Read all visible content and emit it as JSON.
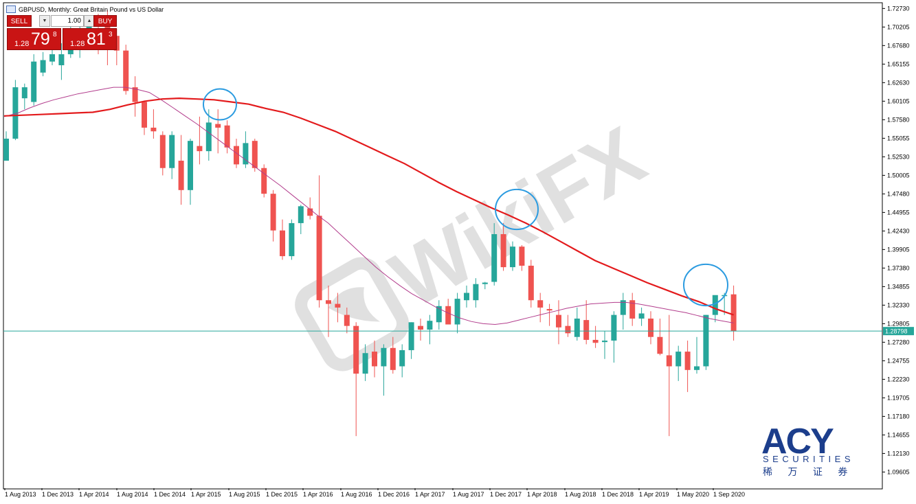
{
  "header": {
    "title": "GBPUSD, Monthly:  Great Britain Pound vs US Dollar",
    "icon": "chart-window-icon"
  },
  "trade_panel": {
    "sell_label": "SELL",
    "buy_label": "BUY",
    "lot_value": "1.00",
    "bid": {
      "prefix": "1.28",
      "big": "79",
      "sup": "8"
    },
    "ask": {
      "prefix": "1.28",
      "big": "81",
      "sup": "3"
    }
  },
  "current_price_label": "1.28798",
  "colors": {
    "bull": "#26a69a",
    "bear": "#ef5350",
    "ma_slow": "#e31a1c",
    "ma_fast": "#b23c8c",
    "price_line": "#26a69a",
    "circle": "#2b9be0",
    "panel_red": "#c91414"
  },
  "watermark": {
    "text": "WikiFX"
  },
  "logo": {
    "brand": "ACY",
    "sub": "SECURITIES",
    "cn": "稀 万 证 券"
  },
  "chart_data": {
    "type": "candlestick",
    "y_ticks": [
      "1.72730",
      "1.70205",
      "1.67680",
      "1.65155",
      "1.62630",
      "1.60105",
      "1.57580",
      "1.55055",
      "1.52530",
      "1.50005",
      "1.47480",
      "1.44955",
      "1.42430",
      "1.39905",
      "1.37380",
      "1.34855",
      "1.32330",
      "1.29805",
      "1.27280",
      "1.24755",
      "1.22230",
      "1.19705",
      "1.17180",
      "1.14655",
      "1.12130",
      "1.09605"
    ],
    "ylim": [
      1.074,
      1.7323
    ],
    "x_ticks": [
      "1 Aug 2013",
      "1 Dec 2013",
      "1 Apr 2014",
      "1 Aug 2014",
      "1 Dec 2014",
      "1 Apr 2015",
      "1 Aug 2015",
      "1 Dec 2015",
      "1 Apr 2016",
      "1 Aug 2016",
      "1 Dec 2016",
      "1 Apr 2017",
      "1 Aug 2017",
      "1 Dec 2017",
      "1 Apr 2018",
      "1 Aug 2018",
      "1 Dec 2018",
      "1 Apr 2019",
      "1 May 2020",
      "1 Sep 2020"
    ],
    "candles": [
      {
        "o": 1.52,
        "h": 1.56,
        "l": 1.52,
        "c": 1.55
      },
      {
        "o": 1.55,
        "h": 1.63,
        "l": 1.548,
        "c": 1.62
      },
      {
        "o": 1.605,
        "h": 1.625,
        "l": 1.59,
        "c": 1.62
      },
      {
        "o": 1.6,
        "h": 1.665,
        "l": 1.595,
        "c": 1.655
      },
      {
        "o": 1.64,
        "h": 1.668,
        "l": 1.635,
        "c": 1.657
      },
      {
        "o": 1.655,
        "h": 1.69,
        "l": 1.65,
        "c": 1.665
      },
      {
        "o": 1.65,
        "h": 1.68,
        "l": 1.63,
        "c": 1.665
      },
      {
        "o": 1.665,
        "h": 1.705,
        "l": 1.66,
        "c": 1.677
      },
      {
        "o": 1.673,
        "h": 1.71,
        "l": 1.66,
        "c": 1.69
      },
      {
        "o": 1.69,
        "h": 1.715,
        "l": 1.675,
        "c": 1.705
      },
      {
        "o": 1.71,
        "h": 1.72,
        "l": 1.665,
        "c": 1.705
      },
      {
        "o": 1.715,
        "h": 1.725,
        "l": 1.65,
        "c": 1.7
      },
      {
        "o": 1.69,
        "h": 1.7,
        "l": 1.65,
        "c": 1.67
      },
      {
        "o": 1.67,
        "h": 1.678,
        "l": 1.61,
        "c": 1.615
      },
      {
        "o": 1.62,
        "h": 1.635,
        "l": 1.58,
        "c": 1.6
      },
      {
        "o": 1.6,
        "h": 1.602,
        "l": 1.555,
        "c": 1.565
      },
      {
        "o": 1.565,
        "h": 1.59,
        "l": 1.55,
        "c": 1.56
      },
      {
        "o": 1.555,
        "h": 1.56,
        "l": 1.5,
        "c": 1.51
      },
      {
        "o": 1.51,
        "h": 1.56,
        "l": 1.495,
        "c": 1.555
      },
      {
        "o": 1.52,
        "h": 1.555,
        "l": 1.46,
        "c": 1.48
      },
      {
        "o": 1.48,
        "h": 1.55,
        "l": 1.46,
        "c": 1.547
      },
      {
        "o": 1.54,
        "h": 1.58,
        "l": 1.515,
        "c": 1.533
      },
      {
        "o": 1.533,
        "h": 1.59,
        "l": 1.52,
        "c": 1.572
      },
      {
        "o": 1.57,
        "h": 1.59,
        "l": 1.53,
        "c": 1.565
      },
      {
        "o": 1.568,
        "h": 1.575,
        "l": 1.53,
        "c": 1.538
      },
      {
        "o": 1.54,
        "h": 1.55,
        "l": 1.51,
        "c": 1.515
      },
      {
        "o": 1.515,
        "h": 1.56,
        "l": 1.51,
        "c": 1.544
      },
      {
        "o": 1.547,
        "h": 1.55,
        "l": 1.505,
        "c": 1.51
      },
      {
        "o": 1.51,
        "h": 1.515,
        "l": 1.47,
        "c": 1.475
      },
      {
        "o": 1.475,
        "h": 1.48,
        "l": 1.41,
        "c": 1.425
      },
      {
        "o": 1.425,
        "h": 1.44,
        "l": 1.385,
        "c": 1.39
      },
      {
        "o": 1.39,
        "h": 1.44,
        "l": 1.385,
        "c": 1.435
      },
      {
        "o": 1.435,
        "h": 1.46,
        "l": 1.42,
        "c": 1.458
      },
      {
        "o": 1.455,
        "h": 1.47,
        "l": 1.44,
        "c": 1.445
      },
      {
        "o": 1.445,
        "h": 1.5,
        "l": 1.32,
        "c": 1.33
      },
      {
        "o": 1.33,
        "h": 1.35,
        "l": 1.28,
        "c": 1.325
      },
      {
        "o": 1.325,
        "h": 1.34,
        "l": 1.3,
        "c": 1.32
      },
      {
        "o": 1.31,
        "h": 1.32,
        "l": 1.285,
        "c": 1.295
      },
      {
        "o": 1.295,
        "h": 1.3,
        "l": 1.145,
        "c": 1.23
      },
      {
        "o": 1.23,
        "h": 1.27,
        "l": 1.22,
        "c": 1.258
      },
      {
        "o": 1.26,
        "h": 1.275,
        "l": 1.225,
        "c": 1.24
      },
      {
        "o": 1.24,
        "h": 1.27,
        "l": 1.2,
        "c": 1.265
      },
      {
        "o": 1.265,
        "h": 1.28,
        "l": 1.23,
        "c": 1.235
      },
      {
        "o": 1.24,
        "h": 1.27,
        "l": 1.225,
        "c": 1.262
      },
      {
        "o": 1.262,
        "h": 1.3,
        "l": 1.25,
        "c": 1.3
      },
      {
        "o": 1.295,
        "h": 1.305,
        "l": 1.275,
        "c": 1.29
      },
      {
        "o": 1.29,
        "h": 1.31,
        "l": 1.27,
        "c": 1.302
      },
      {
        "o": 1.3,
        "h": 1.33,
        "l": 1.29,
        "c": 1.322
      },
      {
        "o": 1.322,
        "h": 1.332,
        "l": 1.3,
        "c": 1.297
      },
      {
        "o": 1.297,
        "h": 1.34,
        "l": 1.285,
        "c": 1.332
      },
      {
        "o": 1.33,
        "h": 1.35,
        "l": 1.32,
        "c": 1.34
      },
      {
        "o": 1.33,
        "h": 1.36,
        "l": 1.32,
        "c": 1.352
      },
      {
        "o": 1.352,
        "h": 1.355,
        "l": 1.345,
        "c": 1.354
      },
      {
        "o": 1.355,
        "h": 1.435,
        "l": 1.35,
        "c": 1.42
      },
      {
        "o": 1.42,
        "h": 1.435,
        "l": 1.37,
        "c": 1.375
      },
      {
        "o": 1.375,
        "h": 1.41,
        "l": 1.37,
        "c": 1.403
      },
      {
        "o": 1.403,
        "h": 1.405,
        "l": 1.37,
        "c": 1.377
      },
      {
        "o": 1.377,
        "h": 1.385,
        "l": 1.32,
        "c": 1.33
      },
      {
        "o": 1.33,
        "h": 1.34,
        "l": 1.3,
        "c": 1.32
      },
      {
        "o": 1.318,
        "h": 1.325,
        "l": 1.295,
        "c": 1.316
      },
      {
        "o": 1.31,
        "h": 1.33,
        "l": 1.27,
        "c": 1.293
      },
      {
        "o": 1.295,
        "h": 1.31,
        "l": 1.28,
        "c": 1.285
      },
      {
        "o": 1.28,
        "h": 1.32,
        "l": 1.275,
        "c": 1.305
      },
      {
        "o": 1.303,
        "h": 1.33,
        "l": 1.27,
        "c": 1.276
      },
      {
        "o": 1.276,
        "h": 1.295,
        "l": 1.265,
        "c": 1.272
      },
      {
        "o": 1.273,
        "h": 1.288,
        "l": 1.25,
        "c": 1.275
      },
      {
        "o": 1.275,
        "h": 1.315,
        "l": 1.245,
        "c": 1.31
      },
      {
        "o": 1.31,
        "h": 1.34,
        "l": 1.29,
        "c": 1.33
      },
      {
        "o": 1.33,
        "h": 1.34,
        "l": 1.295,
        "c": 1.305
      },
      {
        "o": 1.305,
        "h": 1.32,
        "l": 1.295,
        "c": 1.312
      },
      {
        "o": 1.305,
        "h": 1.315,
        "l": 1.27,
        "c": 1.28
      },
      {
        "o": 1.28,
        "h": 1.305,
        "l": 1.255,
        "c": 1.257
      },
      {
        "o": 1.255,
        "h": 1.31,
        "l": 1.145,
        "c": 1.24
      },
      {
        "o": 1.24,
        "h": 1.268,
        "l": 1.22,
        "c": 1.26
      },
      {
        "o": 1.26,
        "h": 1.275,
        "l": 1.205,
        "c": 1.235
      },
      {
        "o": 1.235,
        "h": 1.28,
        "l": 1.23,
        "c": 1.24
      },
      {
        "o": 1.24,
        "h": 1.31,
        "l": 1.235,
        "c": 1.31
      },
      {
        "o": 1.31,
        "h": 1.335,
        "l": 1.3,
        "c": 1.337
      },
      {
        "o": 1.337,
        "h": 1.34,
        "l": 1.31,
        "c": 1.337
      },
      {
        "o": 1.338,
        "h": 1.35,
        "l": 1.275,
        "c": 1.288
      }
    ],
    "ma_fast": [
      1.58,
      1.585,
      1.592,
      1.598,
      1.603,
      1.607,
      1.611,
      1.614,
      1.617,
      1.62,
      1.62,
      1.617,
      1.613,
      1.603,
      1.592,
      1.581,
      1.57,
      1.558,
      1.546,
      1.534,
      1.522,
      1.51,
      1.498,
      1.486,
      1.473,
      1.46,
      1.447,
      1.435,
      1.42,
      1.405,
      1.39,
      1.375,
      1.362,
      1.35,
      1.339,
      1.33,
      1.321,
      1.313,
      1.306,
      1.301,
      1.298,
      1.297,
      1.299,
      1.303,
      1.307,
      1.311,
      1.315,
      1.319,
      1.322,
      1.325,
      1.326,
      1.327,
      1.327,
      1.325,
      1.322,
      1.319,
      1.316,
      1.313,
      1.309,
      1.305,
      1.302,
      1.299
    ],
    "ma_slow": [
      1.581,
      1.582,
      1.583,
      1.584,
      1.585,
      1.586,
      1.59,
      1.596,
      1.601,
      1.604,
      1.605,
      1.604,
      1.603,
      1.6,
      1.597,
      1.591,
      1.586,
      1.578,
      1.569,
      1.56,
      1.549,
      1.538,
      1.527,
      1.516,
      1.503,
      1.49,
      1.478,
      1.467,
      1.456,
      1.446,
      1.435,
      1.423,
      1.41,
      1.397,
      1.384,
      1.374,
      1.364,
      1.354,
      1.345,
      1.336,
      1.328,
      1.318,
      1.31
    ]
  }
}
